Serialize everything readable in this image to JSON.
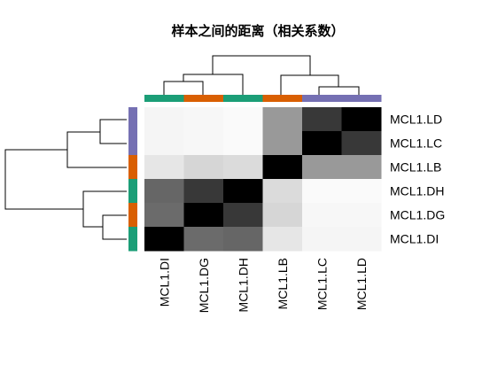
{
  "chart_data": {
    "type": "heatmap",
    "title": "样本之间的距离（相关系数）",
    "rows": [
      "MCL1.LD",
      "MCL1.LC",
      "MCL1.LB",
      "MCL1.DH",
      "MCL1.DG",
      "MCL1.DI"
    ],
    "columns": [
      "MCL1.DI",
      "MCL1.DG",
      "MCL1.DH",
      "MCL1.LB",
      "MCL1.LC",
      "MCL1.LD"
    ],
    "values": [
      [
        0.04,
        0.03,
        0.02,
        0.4,
        0.78,
        1.0
      ],
      [
        0.04,
        0.03,
        0.02,
        0.4,
        1.0,
        0.78
      ],
      [
        0.1,
        0.16,
        0.14,
        1.0,
        0.4,
        0.4
      ],
      [
        0.6,
        0.78,
        1.0,
        0.14,
        0.02,
        0.02
      ],
      [
        0.58,
        1.0,
        0.78,
        0.16,
        0.03,
        0.03
      ],
      [
        1.0,
        0.58,
        0.6,
        0.1,
        0.04,
        0.04
      ]
    ],
    "color_scale": {
      "low": "#ffffff",
      "high": "#000000"
    },
    "row_groups": [
      "#7570B3",
      "#7570B3",
      "#D95F02",
      "#1B9E77",
      "#D95F02",
      "#1B9E77"
    ],
    "column_groups": [
      "#1B9E77",
      "#D95F02",
      "#1B9E77",
      "#D95F02",
      "#7570B3",
      "#7570B3"
    ],
    "legend": "none"
  }
}
